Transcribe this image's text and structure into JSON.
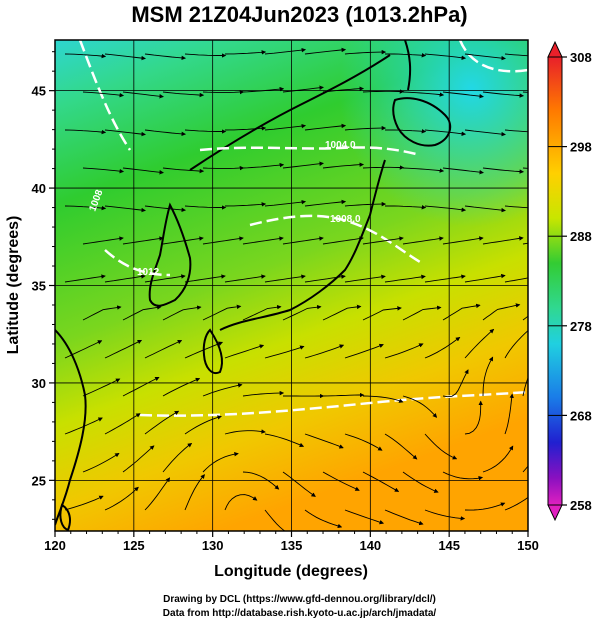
{
  "title": "MSM 21Z04Jun2023 (1013.2hPa)",
  "x_axis": {
    "label": "Longitude (degrees)",
    "range": [
      120,
      150
    ],
    "ticks": [
      "120",
      "125",
      "130",
      "135",
      "140",
      "145",
      "150"
    ]
  },
  "y_axis": {
    "label": "Latitude (degrees)",
    "range": [
      22.4,
      47.6
    ],
    "ticks": [
      "25",
      "30",
      "35",
      "40",
      "45"
    ]
  },
  "colorbar": {
    "range": [
      258,
      308
    ],
    "tick_labels": [
      "308",
      "298",
      "288",
      "278",
      "268",
      "258"
    ]
  },
  "isobars": [
    {
      "label": "1004.0"
    },
    {
      "label": "1008.0"
    },
    {
      "label": "1012"
    },
    {
      "label": "1008"
    }
  ],
  "credits": {
    "line1": "Drawing by DCL (https://www.gfd-dennou.org/library/dcl/)",
    "line2": "Data from http://database.rish.kyoto-u.ac.jp/arch/jmadata/"
  },
  "colors": {
    "cold": "#00c8ff",
    "cool": "#3cd2a0",
    "mid": "#33cc33",
    "warm": "#c8e600",
    "hot": "#ffa800"
  }
}
